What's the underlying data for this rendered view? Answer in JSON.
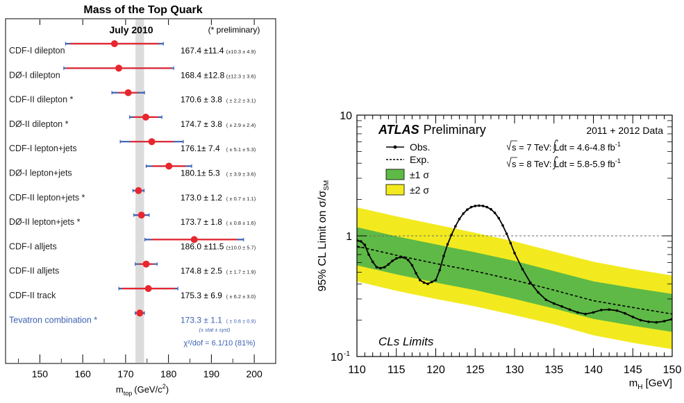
{
  "chart_data": [
    {
      "type": "scatter",
      "title": "Mass of the Top Quark",
      "subtitle": "July 2010",
      "note": "(* preliminary)",
      "xlabel": "m",
      "xlabel_sub": "top",
      "xlabel_unit": "(GeV/c",
      "xlabel_unit_sup": "2",
      "xlabel_unit_tail": ")",
      "xlim": [
        142,
        205
      ],
      "xticks": [
        150,
        160,
        170,
        180,
        190,
        200
      ],
      "band": [
        172.3,
        174.3
      ],
      "measurements": [
        {
          "label": "CDF-I dilepton",
          "value": 167.4,
          "err_tot": "11.4",
          "err_breakdown": "(±10.3 ± 4.9)",
          "stat": 10.3,
          "syst": 4.9,
          "mass_text": "167.4 ±11.4"
        },
        {
          "label": "DØ-I dilepton",
          "value": 168.4,
          "err_tot": "12.8",
          "err_breakdown": "(±12.3 ± 3.6)",
          "stat": 12.3,
          "syst": 3.6,
          "mass_text": "168.4 ±12.8"
        },
        {
          "label": "CDF-II dilepton *",
          "value": 170.6,
          "err_tot": "3.8",
          "err_breakdown": "( ± 2.2 ± 3.1)",
          "stat": 2.2,
          "syst": 3.1,
          "mass_text": "170.6 ± 3.8"
        },
        {
          "label": "DØ-II dilepton *",
          "value": 174.7,
          "err_tot": "3.8",
          "err_breakdown": "( ± 2.9 ± 2.4)",
          "stat": 2.9,
          "syst": 2.4,
          "mass_text": "174.7 ± 3.8"
        },
        {
          "label": "CDF-I lepton+jets",
          "value": 176.1,
          "err_tot": "7.4",
          "err_breakdown": "( ± 5.1 ± 5.3)",
          "stat": 5.1,
          "syst": 5.3,
          "mass_text": "176.1± 7.4"
        },
        {
          "label": "DØ-I lepton+jets",
          "value": 180.1,
          "err_tot": "5.3",
          "err_breakdown": "( ± 3.9 ± 3.6)",
          "stat": 3.9,
          "syst": 3.6,
          "mass_text": "180.1± 5.3"
        },
        {
          "label": "CDF-II lepton+jets *",
          "value": 173.0,
          "err_tot": "1.2",
          "err_breakdown": "( ± 0.7 ± 1.1)",
          "stat": 0.7,
          "syst": 1.1,
          "mass_text": "173.0 ± 1.2"
        },
        {
          "label": "DØ-II lepton+jets *",
          "value": 173.7,
          "err_tot": "1.8",
          "err_breakdown": "( ± 0.8 ± 1.6)",
          "stat": 0.8,
          "syst": 1.6,
          "mass_text": "173.7 ± 1.8"
        },
        {
          "label": "CDF-I alljets",
          "value": 186.0,
          "err_tot": "11.5",
          "err_breakdown": "(±10.0 ± 5.7)",
          "stat": 10.0,
          "syst": 5.7,
          "mass_text": "186.0 ±11.5"
        },
        {
          "label": "CDF-II alljets",
          "value": 174.8,
          "err_tot": "2.5",
          "err_breakdown": "( ± 1.7 ± 1.9)",
          "stat": 1.7,
          "syst": 1.9,
          "mass_text": "174.8 ± 2.5"
        },
        {
          "label": "CDF-II track",
          "value": 175.3,
          "err_tot": "6.9",
          "err_breakdown": "( ± 6.2 ± 3.0)",
          "stat": 6.2,
          "syst": 3.0,
          "mass_text": "175.3 ± 6.9"
        },
        {
          "label": "Tevatron combination *",
          "value": 173.3,
          "err_tot": "1.1",
          "err_breakdown": "( ± 0.6 ± 0.9)",
          "stat": 0.6,
          "syst": 0.9,
          "mass_text": "173.3 ± 1.1",
          "highlight": true
        }
      ],
      "combination_note": "(± stat  ±  syst)",
      "chi2_text": "χ²/dof = 6.1/10 (81%)",
      "colors": {
        "point": "#e8262d",
        "stat_bar": "#e8262d",
        "syst_bar": "#3a5fb0",
        "band": "#dcdcdc",
        "highlight_text": "#3a5fb0"
      }
    },
    {
      "type": "line",
      "title": "ATLAS Preliminary",
      "title_bold": "ATLAS",
      "title_rest": "Preliminary",
      "data_note": "2011 + 2012 Data",
      "lumi_7": "s = 7 TeV:  Ldt = 4.6-4.8 fb",
      "lumi_8": "s = 8 TeV:  Ldt = 5.8-5.9 fb",
      "lumi_sup": "-1",
      "footer": "CLs Limits",
      "ylabel": "95% CL Limit on σ/σ",
      "ylabel_sub": "SM",
      "xlabel": "m",
      "xlabel_sub": "H",
      "xlabel_unit": " [GeV]",
      "xlim": [
        110,
        150
      ],
      "ylim": [
        0.1,
        10
      ],
      "yscale": "log",
      "xticks": [
        110,
        115,
        120,
        125,
        130,
        135,
        140,
        145,
        150
      ],
      "ytick_labels": [
        "10",
        "1",
        "10"
      ],
      "ytick_sup": "-1",
      "legend": [
        {
          "label": "Obs.",
          "style": "solid-marker"
        },
        {
          "label": "Exp.",
          "style": "dashed"
        },
        {
          "label": "±1 σ",
          "color": "#5fb946"
        },
        {
          "label": "±2 σ",
          "color": "#f2ea1f"
        }
      ],
      "reference_line": 1,
      "expected": {
        "x": [
          110,
          115,
          120,
          125,
          130,
          135,
          140,
          145,
          150
        ],
        "y": [
          0.82,
          0.69,
          0.59,
          0.51,
          0.43,
          0.355,
          0.29,
          0.255,
          0.225
        ]
      },
      "band_1sigma": {
        "x": [
          110,
          115,
          120,
          125,
          130,
          135,
          140,
          145,
          150
        ],
        "low": [
          0.57,
          0.48,
          0.41,
          0.355,
          0.3,
          0.25,
          0.205,
          0.18,
          0.16
        ],
        "high": [
          1.18,
          0.99,
          0.85,
          0.73,
          0.62,
          0.51,
          0.42,
          0.37,
          0.33
        ]
      },
      "band_2sigma": {
        "x": [
          110,
          115,
          120,
          125,
          130,
          135,
          140,
          145,
          150
        ],
        "low": [
          0.42,
          0.35,
          0.3,
          0.26,
          0.22,
          0.185,
          0.15,
          0.13,
          0.115
        ],
        "high": [
          1.72,
          1.45,
          1.24,
          1.06,
          0.9,
          0.74,
          0.61,
          0.53,
          0.47
        ]
      },
      "observed": {
        "x": [
          110,
          110.5,
          111,
          111.5,
          112,
          112.5,
          113,
          113.5,
          114,
          114.5,
          115,
          115.5,
          116,
          116.5,
          117,
          117.5,
          118,
          118.5,
          119,
          119.5,
          120,
          120.5,
          121,
          121.5,
          122,
          122.5,
          123,
          123.5,
          124,
          124.5,
          125,
          125.5,
          126,
          126.5,
          127,
          127.5,
          128,
          128.5,
          129,
          129.5,
          130,
          131,
          132,
          133,
          134,
          135,
          136,
          137,
          138,
          139,
          140,
          141,
          142,
          143,
          144,
          145,
          146,
          147,
          148,
          149,
          150
        ],
        "y": [
          0.92,
          0.9,
          0.84,
          0.7,
          0.61,
          0.55,
          0.54,
          0.55,
          0.58,
          0.62,
          0.65,
          0.665,
          0.66,
          0.63,
          0.57,
          0.49,
          0.43,
          0.41,
          0.4,
          0.415,
          0.43,
          0.52,
          0.68,
          0.85,
          1.02,
          1.2,
          1.38,
          1.53,
          1.65,
          1.73,
          1.77,
          1.78,
          1.77,
          1.73,
          1.66,
          1.55,
          1.4,
          1.22,
          1.04,
          0.87,
          0.72,
          0.53,
          0.41,
          0.34,
          0.295,
          0.275,
          0.26,
          0.245,
          0.232,
          0.225,
          0.232,
          0.243,
          0.245,
          0.24,
          0.228,
          0.213,
          0.2,
          0.194,
          0.192,
          0.196,
          0.205
        ]
      },
      "colors": {
        "observed": "#000000",
        "expected": "#000000",
        "one_sigma": "#5fb946",
        "two_sigma": "#f2ea1f"
      }
    }
  ]
}
